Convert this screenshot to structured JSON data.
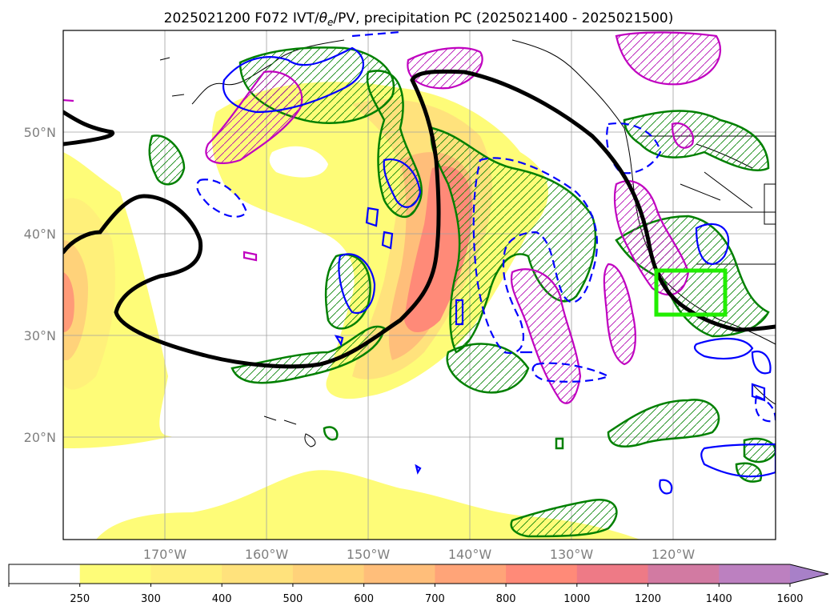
{
  "title": "2025021200 F072 IVT/θe/PV, precipitation PC (2025021400 - 2025021500)",
  "title_parts": {
    "prefix": "2025021200 F072 IVT/",
    "theta": "θ",
    "theta_sub": "e",
    "suffix": "/PV, precipitation PC (2025021400 - 2025021500)"
  },
  "map": {
    "lon_range": [
      -180,
      -110
    ],
    "lat_range": [
      10,
      60
    ],
    "lon_labels": [
      "170°W",
      "160°W",
      "150°W",
      "140°W",
      "130°W",
      "120°W"
    ],
    "lat_labels": [
      "20°N",
      "30°N",
      "40°N",
      "50°N"
    ],
    "highlight_box_color": "#22ee00",
    "highlight_box": {
      "lon": [
        -122.5,
        -115.5
      ],
      "lat": [
        32,
        36.5
      ]
    }
  },
  "colorbar": {
    "levels": [
      "250",
      "300",
      "400",
      "500",
      "600",
      "700",
      "800",
      "1000",
      "1200",
      "1400",
      "1600"
    ],
    "colors": [
      "#ffffff",
      "#fefc78",
      "#fff07a",
      "#ffe27c",
      "#ffd27a",
      "#ffbe7a",
      "#ffa478",
      "#ff8a78",
      "#ee7a86",
      "#d27aa2",
      "#bc80c0",
      "#a880c8"
    ],
    "extend": "max"
  },
  "legend_colors": {
    "pv_contour": "#000000",
    "ivt_positive": "#008000",
    "ivt_negative": "#0000ff",
    "theta_e": "#c000c0"
  }
}
